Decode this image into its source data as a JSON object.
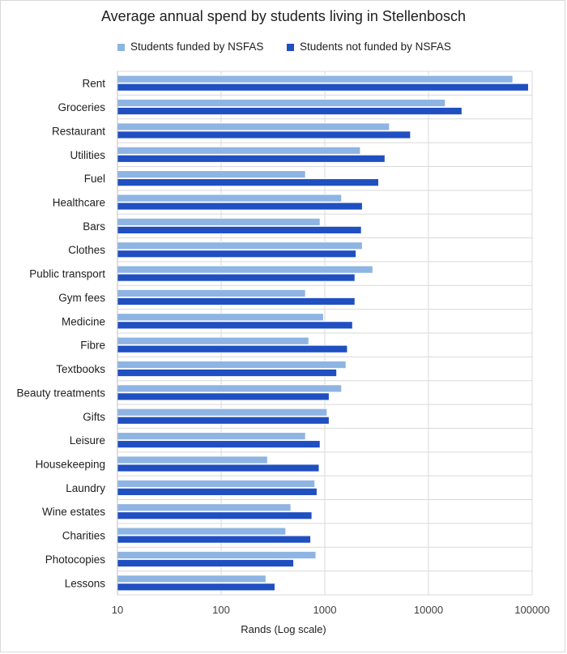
{
  "chart_data": {
    "type": "bar",
    "orientation": "horizontal",
    "title": "Average annual spend by students living in Stellenbosch",
    "xlabel": "Rands (Log scale)",
    "ylabel": "",
    "x_scale": "log",
    "xlim": [
      10,
      100000
    ],
    "x_ticks": [
      "10",
      "100",
      "1000",
      "10000",
      "100000"
    ],
    "x_tick_values": [
      10,
      100,
      1000,
      10000,
      100000
    ],
    "grid": "vertical and horizontal major gridlines",
    "legend_position": "top",
    "categories": [
      "Rent",
      "Groceries",
      "Restaurant",
      "Utilities",
      "Fuel",
      "Healthcare",
      "Bars",
      "Clothes",
      "Public transport",
      "Gym fees",
      "Medicine",
      "Fibre",
      "Textbooks",
      "Beauty treatments",
      "Gifts",
      "Leisure",
      "Housekeeping",
      "Laundry",
      "Wine estates",
      "Charities",
      "Photocopies",
      "Lessons"
    ],
    "series": [
      {
        "name": "Students funded by NSFAS",
        "color": "#8eb4e3",
        "values": [
          65000,
          14500,
          4200,
          2200,
          650,
          1450,
          900,
          2300,
          2900,
          650,
          970,
          700,
          1600,
          1450,
          1050,
          650,
          280,
          800,
          470,
          420,
          820,
          270
        ]
      },
      {
        "name": "Students not funded by NSFAS",
        "color": "#1f4fc1",
        "values": [
          92000,
          21000,
          6700,
          3800,
          3300,
          2300,
          2250,
          2000,
          1950,
          1950,
          1850,
          1650,
          1300,
          1100,
          1100,
          900,
          880,
          840,
          750,
          730,
          500,
          330
        ]
      }
    ]
  }
}
